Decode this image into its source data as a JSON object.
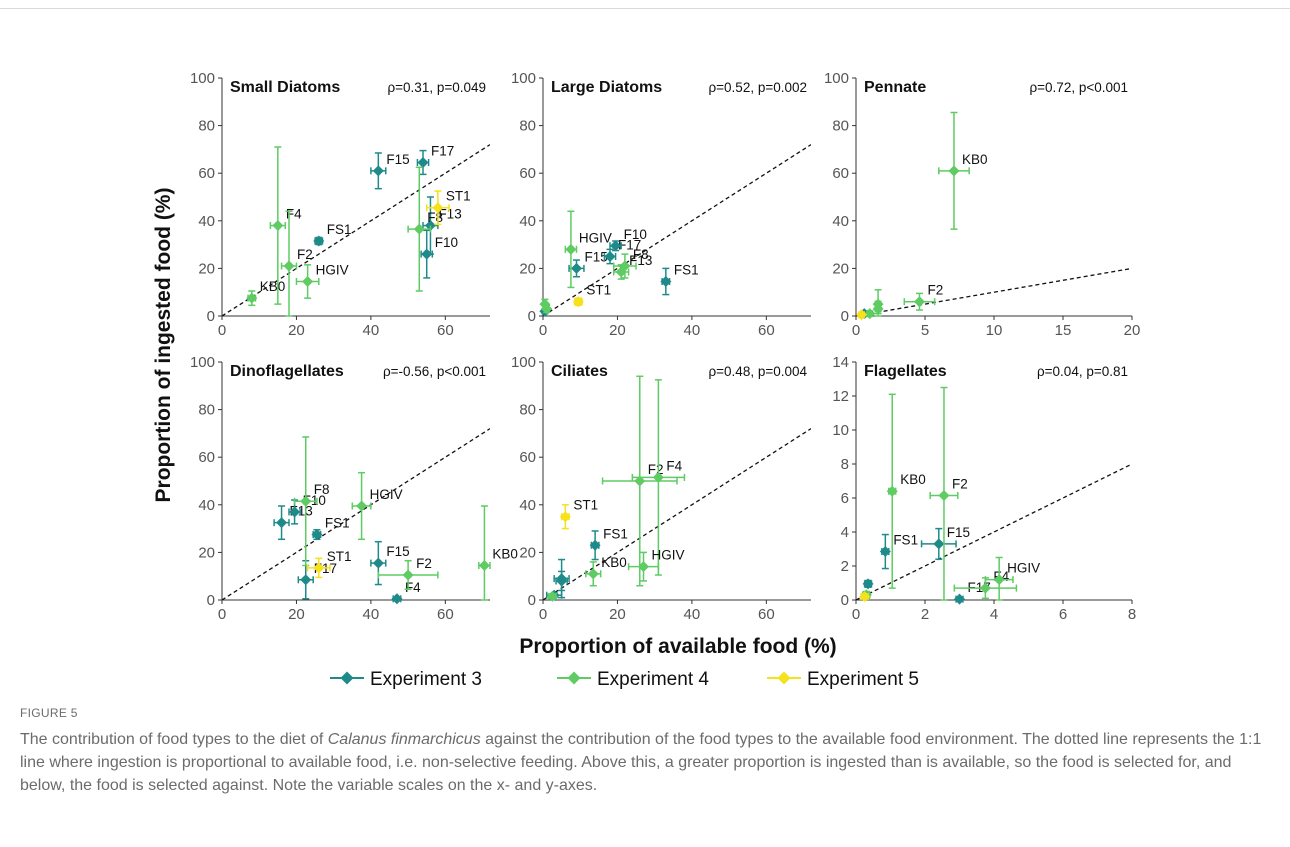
{
  "figure": {
    "y_label": "Proportion of ingested food (%)",
    "x_label": "Proportion of available food (%)",
    "legend": [
      {
        "name": "Experiment 3",
        "color": "#1f8a8a"
      },
      {
        "name": "Experiment 4",
        "color": "#5ecb63"
      },
      {
        "name": "Experiment 5",
        "color": "#f5e11c"
      }
    ]
  },
  "caption": {
    "label": "FIGURE 5",
    "text_before": "The contribution of food types to the diet of ",
    "species": "Calanus finmarchicus",
    "text_after": " against the contribution of the food types to the available food environment. The dotted line represents the 1:1 line where ingestion is proportional to available food, i.e. non-selective feeding. Above this, a greater proportion is ingested than is available, so the food is selected for, and below, the food is selected against. Note the variable scales on the x- and y-axes."
  },
  "chart_data": [
    {
      "type": "scatter",
      "title": "Small Diatoms",
      "stat": "ρ=0.31, p=0.049",
      "xlim": [
        0,
        72
      ],
      "ylim": [
        0,
        100
      ],
      "xticks": [
        0,
        20,
        40,
        60
      ],
      "yticks": [
        0,
        20,
        40,
        60,
        80,
        100
      ],
      "series": [
        {
          "name": "Experiment 3",
          "color": "#1f8a8a",
          "points": [
            {
              "label": "FS1",
              "x": 26,
              "y": 31.5,
              "xerr": 1,
              "yerr": 1.5
            },
            {
              "label": "F15",
              "x": 42,
              "y": 61,
              "xerr": 2,
              "yerr": 7.5
            },
            {
              "label": "F17",
              "x": 54,
              "y": 64.5,
              "xerr": 1.5,
              "yerr": 5
            },
            {
              "label": "F13",
              "x": 56,
              "y": 38,
              "xerr": 2,
              "yerr": 12
            },
            {
              "label": "F10",
              "x": 55,
              "y": 26,
              "xerr": 1.5,
              "yerr": 10
            }
          ]
        },
        {
          "name": "Experiment 4",
          "color": "#5ecb63",
          "points": [
            {
              "label": "KB0",
              "x": 8,
              "y": 7.5,
              "xerr": 1,
              "yerr": 3
            },
            {
              "label": "F4",
              "x": 15,
              "y": 38,
              "xerr": 2,
              "yerr": 33
            },
            {
              "label": "F2",
              "x": 18,
              "y": 21,
              "xerr": 2,
              "yerr": 23
            },
            {
              "label": "HGIV",
              "x": 23,
              "y": 14.5,
              "xerr": 3,
              "yerr": 7
            },
            {
              "label": "F8",
              "x": 53,
              "y": 36.5,
              "xerr": 3,
              "yerr": 26
            }
          ]
        },
        {
          "name": "Experiment 5",
          "color": "#f5e11c",
          "points": [
            {
              "label": "ST1",
              "x": 58,
              "y": 45.5,
              "xerr": 3,
              "yerr": 7
            }
          ]
        }
      ]
    },
    {
      "type": "scatter",
      "title": "Large Diatoms",
      "stat": "ρ=0.52, p=0.002",
      "xlim": [
        0,
        72
      ],
      "ylim": [
        0,
        100
      ],
      "xticks": [
        0,
        20,
        40,
        60
      ],
      "yticks": [
        0,
        20,
        40,
        60,
        80,
        100
      ],
      "series": [
        {
          "name": "Experiment 3",
          "color": "#1f8a8a",
          "points": [
            {
              "label": "F15",
              "x": 9,
              "y": 20,
              "xerr": 2,
              "yerr": 3.5
            },
            {
              "label": "F17",
              "x": 18,
              "y": 25,
              "xerr": 1.5,
              "yerr": 3
            },
            {
              "label": "F10",
              "x": 19.5,
              "y": 29.5,
              "xerr": 1.5,
              "yerr": 2
            },
            {
              "label": "FS1",
              "x": 33,
              "y": 14.5,
              "xerr": 1,
              "yerr": 5.5
            },
            {
              "label": "",
              "x": 0.5,
              "y": 2,
              "xerr": 0.5,
              "yerr": 1
            }
          ]
        },
        {
          "name": "Experiment 4",
          "color": "#5ecb63",
          "points": [
            {
              "label": "HGIV",
              "x": 7.5,
              "y": 28,
              "xerr": 1.5,
              "yerr": 16
            },
            {
              "label": "F8",
              "x": 22,
              "y": 21,
              "xerr": 3,
              "yerr": 5
            },
            {
              "label": "F13",
              "x": 21,
              "y": 18.5,
              "xerr": 2,
              "yerr": 3
            },
            {
              "label": "",
              "x": 0.5,
              "y": 5,
              "xerr": 0.5,
              "yerr": 2
            },
            {
              "label": "",
              "x": 1,
              "y": 3,
              "xerr": 0.5,
              "yerr": 1.5
            }
          ]
        },
        {
          "name": "Experiment 5",
          "color": "#f5e11c",
          "points": [
            {
              "label": "ST1",
              "x": 9.5,
              "y": 6,
              "xerr": 1,
              "yerr": 1.5
            }
          ]
        }
      ]
    },
    {
      "type": "scatter",
      "title": "Pennate",
      "stat": "ρ=0.72, p<0.001",
      "xlim": [
        0,
        20
      ],
      "ylim": [
        0,
        100
      ],
      "xticks": [
        0,
        5,
        10,
        15,
        20
      ],
      "yticks": [
        0,
        20,
        40,
        60,
        80,
        100
      ],
      "series": [
        {
          "name": "Experiment 3",
          "color": "#1f8a8a",
          "points": [
            {
              "label": "",
              "x": 0.6,
              "y": 1,
              "xerr": 0.2,
              "yerr": 0.5
            }
          ]
        },
        {
          "name": "Experiment 4",
          "color": "#5ecb63",
          "points": [
            {
              "label": "KB0",
              "x": 7.1,
              "y": 61,
              "xerr": 1.1,
              "yerr": 24.5
            },
            {
              "label": "F2",
              "x": 4.6,
              "y": 6,
              "xerr": 1.1,
              "yerr": 3.5
            },
            {
              "label": "",
              "x": 1.6,
              "y": 5,
              "xerr": 0.2,
              "yerr": 6
            },
            {
              "label": "",
              "x": 1.6,
              "y": 3,
              "xerr": 0.2,
              "yerr": 2
            },
            {
              "label": "",
              "x": 1,
              "y": 1,
              "xerr": 0.2,
              "yerr": 1
            }
          ]
        },
        {
          "name": "Experiment 5",
          "color": "#f5e11c",
          "points": [
            {
              "label": "",
              "x": 0.4,
              "y": 0.5,
              "xerr": 0.2,
              "yerr": 0.5
            }
          ]
        }
      ]
    },
    {
      "type": "scatter",
      "title": "Dinoflagellates",
      "stat": "ρ=-0.56, p<0.001",
      "xlim": [
        0,
        72
      ],
      "ylim": [
        0,
        100
      ],
      "xticks": [
        0,
        20,
        40,
        60
      ],
      "yticks": [
        0,
        20,
        40,
        60,
        80,
        100
      ],
      "series": [
        {
          "name": "Experiment 3",
          "color": "#1f8a8a",
          "points": [
            {
              "label": "F13",
              "x": 16,
              "y": 32.5,
              "xerr": 2,
              "yerr": 7
            },
            {
              "label": "F10",
              "x": 19.5,
              "y": 37,
              "xerr": 1.5,
              "yerr": 5
            },
            {
              "label": "FS1",
              "x": 25.5,
              "y": 27.5,
              "xerr": 1,
              "yerr": 2
            },
            {
              "label": "F15",
              "x": 42,
              "y": 15.5,
              "xerr": 2,
              "yerr": 9
            },
            {
              "label": "F17",
              "x": 22.5,
              "y": 8.5,
              "xerr": 2,
              "yerr": 8
            },
            {
              "label": "F4",
              "x": 47,
              "y": 0.5,
              "xerr": 1,
              "yerr": 0.5
            }
          ]
        },
        {
          "name": "Experiment 4",
          "color": "#5ecb63",
          "points": [
            {
              "label": "F8",
              "x": 22.5,
              "y": 41.5,
              "xerr": 3,
              "yerr": 27
            },
            {
              "label": "HGIV",
              "x": 37.5,
              "y": 39.5,
              "xerr": 2.5,
              "yerr": 14
            },
            {
              "label": "F2",
              "x": 50,
              "y": 10.5,
              "xerr": 8,
              "yerr": 6
            },
            {
              "label": "KB0",
              "x": 70.5,
              "y": 14.5,
              "xerr": 1.5,
              "yerr": 25
            }
          ]
        },
        {
          "name": "Experiment 5",
          "color": "#f5e11c",
          "points": [
            {
              "label": "ST1",
              "x": 26,
              "y": 13.5,
              "xerr": 3,
              "yerr": 4
            }
          ]
        }
      ]
    },
    {
      "type": "scatter",
      "title": "Ciliates",
      "stat": "ρ=0.48, p=0.004",
      "xlim": [
        0,
        72
      ],
      "ylim": [
        0,
        100
      ],
      "xticks": [
        0,
        20,
        40,
        60
      ],
      "yticks": [
        0,
        20,
        40,
        60,
        80,
        100
      ],
      "series": [
        {
          "name": "Experiment 3",
          "color": "#1f8a8a",
          "points": [
            {
              "label": "FS1",
              "x": 14,
              "y": 23,
              "xerr": 1,
              "yerr": 6
            },
            {
              "label": "",
              "x": 5,
              "y": 9,
              "xerr": 2,
              "yerr": 8
            },
            {
              "label": "",
              "x": 5,
              "y": 8,
              "xerr": 1.5,
              "yerr": 4
            },
            {
              "label": "",
              "x": 3,
              "y": 2,
              "xerr": 2,
              "yerr": 1
            }
          ]
        },
        {
          "name": "Experiment 4",
          "color": "#5ecb63",
          "points": [
            {
              "label": "F2",
              "x": 26,
              "y": 50,
              "xerr": 10,
              "yerr": 44
            },
            {
              "label": "F4",
              "x": 31,
              "y": 51.5,
              "xerr": 7,
              "yerr": 41
            },
            {
              "label": "KB0",
              "x": 13.5,
              "y": 11,
              "xerr": 2,
              "yerr": 5
            },
            {
              "label": "HGIV",
              "x": 27,
              "y": 14,
              "xerr": 4,
              "yerr": 6
            },
            {
              "label": "",
              "x": 2.5,
              "y": 1.5,
              "xerr": 1,
              "yerr": 1
            }
          ]
        },
        {
          "name": "Experiment 5",
          "color": "#f5e11c",
          "points": [
            {
              "label": "ST1",
              "x": 6,
              "y": 35,
              "xerr": 1,
              "yerr": 5
            }
          ]
        }
      ]
    },
    {
      "type": "scatter",
      "title": "Flagellates",
      "stat": "ρ=0.04, p=0.81",
      "xlim": [
        0,
        8
      ],
      "ylim": [
        0,
        14
      ],
      "xticks": [
        0,
        2,
        4,
        6,
        8
      ],
      "yticks": [
        0,
        2,
        4,
        6,
        8,
        10,
        12,
        14
      ],
      "series": [
        {
          "name": "Experiment 3",
          "color": "#1f8a8a",
          "points": [
            {
              "label": "FS1",
              "x": 0.85,
              "y": 2.85,
              "xerr": 0.1,
              "yerr": 1
            },
            {
              "label": "F15",
              "x": 2.4,
              "y": 3.3,
              "xerr": 0.5,
              "yerr": 0.9
            },
            {
              "label": "F17",
              "x": 3,
              "y": 0.05,
              "xerr": 0.1,
              "yerr": 0.05
            },
            {
              "label": "",
              "x": 0.35,
              "y": 0.95,
              "xerr": 0.1,
              "yerr": 0.2
            }
          ]
        },
        {
          "name": "Experiment 4",
          "color": "#5ecb63",
          "points": [
            {
              "label": "KB0",
              "x": 1.05,
              "y": 6.4,
              "xerr": 0.1,
              "yerr": 5.7
            },
            {
              "label": "F2",
              "x": 2.55,
              "y": 6.15,
              "xerr": 0.4,
              "yerr": 6.35
            },
            {
              "label": "F4",
              "x": 3.75,
              "y": 0.7,
              "xerr": 0.9,
              "yerr": 0.6
            },
            {
              "label": "HGIV",
              "x": 4.15,
              "y": 1.2,
              "xerr": 0.4,
              "yerr": 1.3
            },
            {
              "label": "",
              "x": 0.3,
              "y": 0.3,
              "xerr": 0.1,
              "yerr": 0.2
            }
          ]
        },
        {
          "name": "Experiment 5",
          "color": "#f5e11c",
          "points": [
            {
              "label": "",
              "x": 0.25,
              "y": 0.2,
              "xerr": 0.1,
              "yerr": 0.1
            }
          ]
        }
      ]
    }
  ]
}
